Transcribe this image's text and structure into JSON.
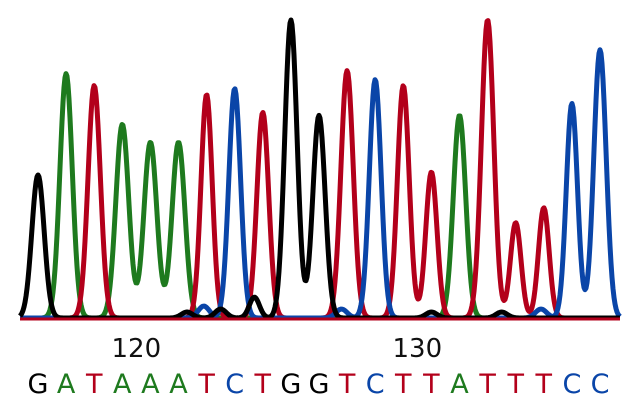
{
  "chart_data": {
    "type": "line",
    "title": "",
    "xlabel": "",
    "ylabel": "",
    "ylim": [
      0,
      100
    ],
    "x_ticks": [
      {
        "label": "120",
        "position": 120
      },
      {
        "label": "130",
        "position": 130
      }
    ],
    "colors": {
      "A": "#1e7a1e",
      "C": "#0a45a8",
      "G": "#000000",
      "T": "#b3001b"
    },
    "bases": [
      {
        "base": "G",
        "position": 116.5
      },
      {
        "base": "A",
        "position": 117.5
      },
      {
        "base": "T",
        "position": 118.5
      },
      {
        "base": "A",
        "position": 119.5
      },
      {
        "base": "A",
        "position": 120.5
      },
      {
        "base": "A",
        "position": 121.5
      },
      {
        "base": "T",
        "position": 122.5
      },
      {
        "base": "C",
        "position": 123.5
      },
      {
        "base": "T",
        "position": 124.5
      },
      {
        "base": "G",
        "position": 125.5
      },
      {
        "base": "G",
        "position": 126.5
      },
      {
        "base": "T",
        "position": 127.5
      },
      {
        "base": "C",
        "position": 128.5
      },
      {
        "base": "T",
        "position": 129.5
      },
      {
        "base": "T",
        "position": 130.5
      },
      {
        "base": "A",
        "position": 131.5
      },
      {
        "base": "T",
        "position": 132.5
      },
      {
        "base": "T",
        "position": 133.5
      },
      {
        "base": "T",
        "position": 134.5
      },
      {
        "base": "C",
        "position": 135.5
      },
      {
        "base": "C",
        "position": 136.5
      }
    ],
    "series": [
      {
        "name": "G",
        "peaks": [
          {
            "x": 116.5,
            "height": 48,
            "width": 0.22
          },
          {
            "x": 121.8,
            "height": 2,
            "width": 0.2
          },
          {
            "x": 123.0,
            "height": 3,
            "width": 0.2
          },
          {
            "x": 124.2,
            "height": 7,
            "width": 0.18
          },
          {
            "x": 125.5,
            "height": 100,
            "width": 0.22
          },
          {
            "x": 126.5,
            "height": 68,
            "width": 0.22
          },
          {
            "x": 130.5,
            "height": 2,
            "width": 0.2
          },
          {
            "x": 133.0,
            "height": 2,
            "width": 0.2
          }
        ]
      },
      {
        "name": "A",
        "peaks": [
          {
            "x": 117.5,
            "height": 82,
            "width": 0.22
          },
          {
            "x": 119.5,
            "height": 65,
            "width": 0.23
          },
          {
            "x": 120.5,
            "height": 59,
            "width": 0.23
          },
          {
            "x": 121.5,
            "height": 59,
            "width": 0.23
          },
          {
            "x": 131.5,
            "height": 68,
            "width": 0.22
          }
        ]
      },
      {
        "name": "T",
        "peaks": [
          {
            "x": 118.5,
            "height": 78,
            "width": 0.22
          },
          {
            "x": 122.5,
            "height": 75,
            "width": 0.2
          },
          {
            "x": 124.5,
            "height": 69,
            "width": 0.21
          },
          {
            "x": 127.5,
            "height": 83,
            "width": 0.22
          },
          {
            "x": 129.5,
            "height": 78,
            "width": 0.21
          },
          {
            "x": 130.5,
            "height": 49,
            "width": 0.2
          },
          {
            "x": 132.5,
            "height": 100,
            "width": 0.22
          },
          {
            "x": 133.5,
            "height": 32,
            "width": 0.19
          },
          {
            "x": 134.5,
            "height": 37,
            "width": 0.19
          }
        ]
      },
      {
        "name": "C",
        "peaks": [
          {
            "x": 123.5,
            "height": 77,
            "width": 0.21
          },
          {
            "x": 128.5,
            "height": 80,
            "width": 0.21
          },
          {
            "x": 135.5,
            "height": 72,
            "width": 0.2
          },
          {
            "x": 136.5,
            "height": 90,
            "width": 0.22
          },
          {
            "x": 122.4,
            "height": 4,
            "width": 0.2
          },
          {
            "x": 127.3,
            "height": 3,
            "width": 0.2
          },
          {
            "x": 134.4,
            "height": 3,
            "width": 0.2
          }
        ]
      }
    ]
  }
}
